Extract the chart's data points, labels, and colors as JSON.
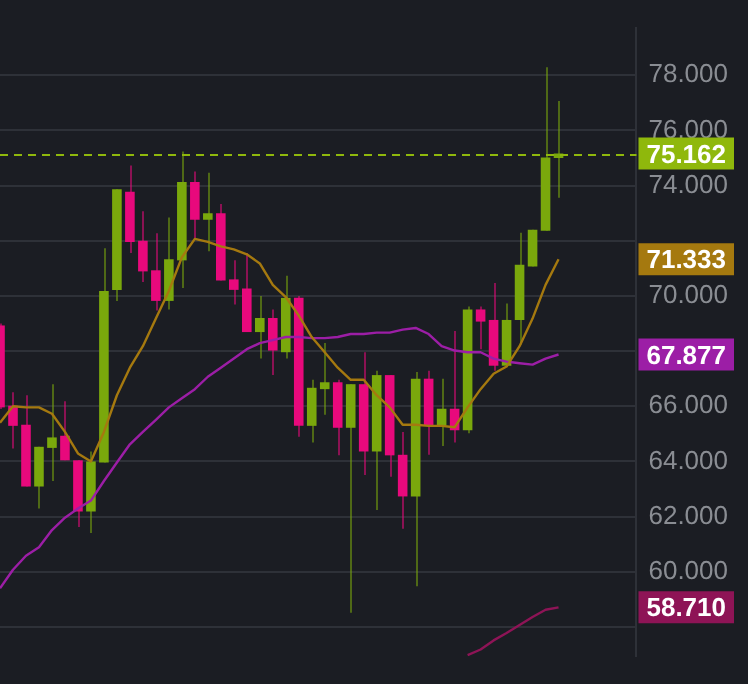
{
  "chart_data": {
    "type": "candlestick",
    "categories": [
      null,
      null,
      null,
      null,
      null,
      null,
      null,
      null,
      null,
      null,
      null,
      null,
      null,
      null,
      null,
      null,
      null,
      null,
      null,
      null,
      null,
      null,
      null,
      null,
      null,
      null,
      null,
      null,
      null,
      null,
      null,
      null,
      null,
      null,
      null,
      null,
      null,
      null,
      null,
      null,
      null,
      null,
      null,
      null,
      null,
      null,
      null,
      null,
      null,
      null
    ],
    "ohlc": [
      [
        68.93,
        69.0,
        65.9,
        65.96
      ],
      [
        66.02,
        66.51,
        64.47,
        65.29
      ],
      [
        65.33,
        66.4,
        63.09,
        63.09
      ],
      [
        63.09,
        64.53,
        62.29,
        64.53
      ],
      [
        64.49,
        66.8,
        63.29,
        64.87
      ],
      [
        64.93,
        66.18,
        64.04,
        64.04
      ],
      [
        64.04,
        64.04,
        61.62,
        62.18
      ],
      [
        62.18,
        64.36,
        61.4,
        64.0
      ],
      [
        63.96,
        71.73,
        63.96,
        70.18
      ],
      [
        70.22,
        73.87,
        69.82,
        73.87
      ],
      [
        73.78,
        74.73,
        71.56,
        71.96
      ],
      [
        72.0,
        73.07,
        70.51,
        70.89
      ],
      [
        70.93,
        72.27,
        69.47,
        69.82
      ],
      [
        69.82,
        72.84,
        69.51,
        71.33
      ],
      [
        71.29,
        75.24,
        70.29,
        74.13
      ],
      [
        74.13,
        74.51,
        72.07,
        72.76
      ],
      [
        72.76,
        74.47,
        71.62,
        73.0
      ],
      [
        73.0,
        73.33,
        70.56,
        70.56
      ],
      [
        70.6,
        71.29,
        69.69,
        70.22
      ],
      [
        70.27,
        71.56,
        68.69,
        68.69
      ],
      [
        68.69,
        70.0,
        67.73,
        69.2
      ],
      [
        69.2,
        69.51,
        67.13,
        68.02
      ],
      [
        67.96,
        70.73,
        67.73,
        69.93
      ],
      [
        69.93,
        70.0,
        64.89,
        65.29
      ],
      [
        65.29,
        66.96,
        64.69,
        66.67
      ],
      [
        66.62,
        68.29,
        65.69,
        66.87
      ],
      [
        66.87,
        66.96,
        64.22,
        65.22
      ],
      [
        65.22,
        66.8,
        58.51,
        66.8
      ],
      [
        66.8,
        67.96,
        63.51,
        64.36
      ],
      [
        64.36,
        67.29,
        62.24,
        67.13
      ],
      [
        67.13,
        67.13,
        63.44,
        64.22
      ],
      [
        64.24,
        65.07,
        61.56,
        62.73
      ],
      [
        62.73,
        67.24,
        59.47,
        67.0
      ],
      [
        67.0,
        67.29,
        64.24,
        65.29
      ],
      [
        65.29,
        67.0,
        64.56,
        65.91
      ],
      [
        65.91,
        68.73,
        64.69,
        65.13
      ],
      [
        65.13,
        69.62,
        65.02,
        69.51
      ],
      [
        69.51,
        69.62,
        68.07,
        69.07
      ],
      [
        69.13,
        70.47,
        67.29,
        67.47
      ],
      [
        67.47,
        69.73,
        67.47,
        69.13
      ],
      [
        69.13,
        72.29,
        68.24,
        71.13
      ],
      [
        71.07,
        72.4,
        71.07,
        72.4
      ],
      [
        72.36,
        78.29,
        72.36,
        75.02
      ],
      [
        75.0,
        77.07,
        73.56,
        75.162
      ],
      null,
      null,
      null,
      null,
      null,
      null
    ],
    "colors": [
      "#e8097c",
      "#e8097c",
      "#e8097c",
      "#7aa80c",
      "#7aa80c",
      "#e8097c",
      "#e8097c",
      "#7aa80c",
      "#7aa80c",
      "#7aa80c",
      "#e8097c",
      "#e8097c",
      "#e8097c",
      "#7aa80c",
      "#7aa80c",
      "#e8097c",
      "#7aa80c",
      "#e8097c",
      "#e8097c",
      "#e8097c",
      "#7aa80c",
      "#e8097c",
      "#7aa80c",
      "#e8097c",
      "#7aa80c",
      "#7aa80c",
      "#e8097c",
      "#7aa80c",
      "#e8097c",
      "#7aa80c",
      "#e8097c",
      "#e8097c",
      "#7aa80c",
      "#e8097c",
      "#7aa80c",
      "#e8097c",
      "#7aa80c",
      "#e8097c",
      "#e8097c",
      "#7aa80c",
      "#7aa80c",
      "#7aa80c",
      "#7aa80c",
      "#7aa80c",
      null,
      null,
      null,
      null,
      null,
      null
    ],
    "series": [
      {
        "type": "line",
        "color": "#a5790f",
        "values": [
          65.4,
          66.0,
          65.96,
          65.96,
          65.73,
          65.07,
          64.29,
          64.0,
          65.07,
          66.4,
          67.4,
          68.18,
          69.18,
          70.18,
          71.4,
          72.07,
          71.96,
          71.8,
          71.69,
          71.51,
          71.18,
          70.4,
          69.96,
          69.29,
          68.51,
          67.96,
          67.4,
          66.96,
          66.96,
          66.4,
          65.96,
          65.33,
          65.33,
          65.29,
          65.29,
          65.24,
          65.96,
          66.62,
          67.18,
          67.44,
          68.18,
          69.18,
          70.4,
          71.333,
          null,
          null,
          null,
          null,
          null,
          null
        ]
      },
      {
        "type": "line",
        "color": "#9c1ea6",
        "values": [
          59.4,
          60.07,
          60.58,
          60.89,
          61.51,
          61.96,
          62.29,
          62.58,
          63.29,
          63.96,
          64.62,
          65.07,
          65.51,
          65.96,
          66.29,
          66.62,
          67.07,
          67.4,
          67.73,
          68.07,
          68.29,
          68.4,
          68.51,
          68.51,
          68.47,
          68.47,
          68.51,
          68.62,
          68.62,
          68.67,
          68.67,
          68.78,
          68.84,
          68.62,
          68.18,
          68.02,
          67.96,
          67.96,
          67.73,
          67.62,
          67.56,
          67.51,
          67.73,
          67.877,
          null,
          null,
          null,
          null,
          null,
          null
        ]
      },
      {
        "type": "line",
        "color": "#8e1456",
        "values": [
          null,
          null,
          null,
          null,
          null,
          null,
          null,
          null,
          null,
          null,
          null,
          null,
          null,
          null,
          null,
          null,
          null,
          null,
          null,
          null,
          null,
          null,
          null,
          null,
          null,
          null,
          null,
          null,
          null,
          null,
          null,
          null,
          null,
          null,
          null,
          null,
          56.98,
          57.18,
          57.51,
          57.78,
          58.07,
          58.36,
          58.62,
          58.71,
          null,
          null,
          null,
          null,
          null,
          null
        ]
      }
    ],
    "ylim": [
      56.93,
      79.73
    ],
    "yticks": [
      {
        "value": 58,
        "label": null
      },
      {
        "value": 60,
        "label": "60.000"
      },
      {
        "value": 62,
        "label": "62.000"
      },
      {
        "value": 64,
        "label": "64.000"
      },
      {
        "value": 66,
        "label": "66.000"
      },
      {
        "value": 68,
        "label": null
      },
      {
        "value": 70,
        "label": "70.000"
      },
      {
        "value": 72,
        "label": null
      },
      {
        "value": 74,
        "label": "74.000"
      },
      {
        "value": 76,
        "label": "76.000"
      },
      {
        "value": 78,
        "label": "78.000"
      }
    ],
    "ref_lines": [
      {
        "axis": "y",
        "value": 75.162,
        "label": "75.162",
        "color": "#8fb80c",
        "line_style": "dashed"
      }
    ],
    "annotations": [
      "71.333",
      "67.877",
      "58.710"
    ],
    "tick_labels": "y",
    "grid": "y",
    "legend": false
  }
}
